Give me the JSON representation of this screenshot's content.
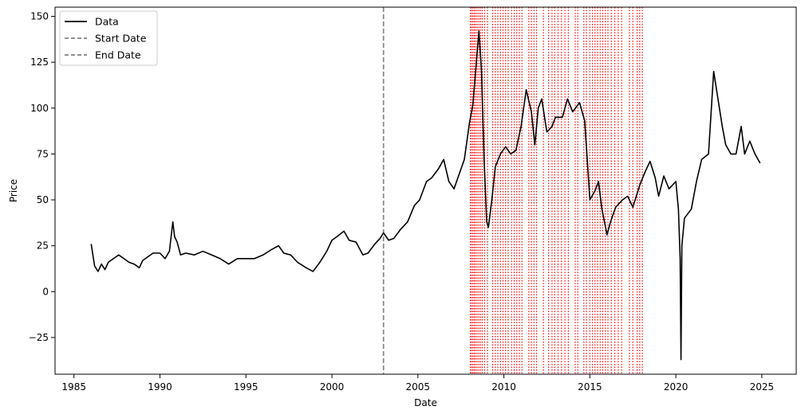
{
  "chart_data": {
    "type": "line",
    "xlabel": "Date",
    "ylabel": "Price",
    "xlim": [
      1983.9,
      2027.0
    ],
    "ylim": [
      -45,
      155
    ],
    "x_ticks": [
      1985,
      1990,
      1995,
      2000,
      2005,
      2010,
      2015,
      2020,
      2025
    ],
    "x_tick_labels": [
      "1985",
      "1990",
      "1995",
      "2000",
      "2005",
      "2010",
      "2015",
      "2020",
      "2025"
    ],
    "y_ticks": [
      -25,
      0,
      25,
      50,
      75,
      100,
      125,
      150
    ],
    "y_tick_labels": [
      "−25",
      "0",
      "25",
      "50",
      "75",
      "100",
      "125",
      "150"
    ],
    "grid": false,
    "legend_position": "upper-left",
    "legend": [
      {
        "label": "Data",
        "style": "solid",
        "color": "#000000"
      },
      {
        "label": "Start Date",
        "style": "dashed",
        "color": "#808080"
      },
      {
        "label": "End Date",
        "style": "dashed",
        "color": "#808080"
      }
    ],
    "colors": {
      "series": "#000000",
      "vline": "#808080",
      "events": "#ff0000"
    },
    "series": [
      {
        "name": "Data",
        "points": [
          [
            1986.0,
            26
          ],
          [
            1986.2,
            14
          ],
          [
            1986.4,
            11
          ],
          [
            1986.6,
            15
          ],
          [
            1986.8,
            12
          ],
          [
            1987.0,
            16
          ],
          [
            1987.3,
            18
          ],
          [
            1987.6,
            20
          ],
          [
            1987.9,
            18
          ],
          [
            1988.2,
            16
          ],
          [
            1988.5,
            15
          ],
          [
            1988.8,
            13
          ],
          [
            1989.0,
            17
          ],
          [
            1989.3,
            19
          ],
          [
            1989.6,
            21
          ],
          [
            1990.0,
            21
          ],
          [
            1990.3,
            18
          ],
          [
            1990.55,
            22
          ],
          [
            1990.75,
            38
          ],
          [
            1990.85,
            30
          ],
          [
            1991.0,
            27
          ],
          [
            1991.2,
            20
          ],
          [
            1991.5,
            21
          ],
          [
            1992.0,
            20
          ],
          [
            1992.5,
            22
          ],
          [
            1993.0,
            20
          ],
          [
            1993.5,
            18
          ],
          [
            1994.0,
            15
          ],
          [
            1994.5,
            18
          ],
          [
            1995.0,
            18
          ],
          [
            1995.5,
            18
          ],
          [
            1996.0,
            20
          ],
          [
            1996.5,
            23
          ],
          [
            1996.9,
            25
          ],
          [
            1997.2,
            21
          ],
          [
            1997.6,
            20
          ],
          [
            1998.0,
            16
          ],
          [
            1998.5,
            13
          ],
          [
            1998.9,
            11
          ],
          [
            1999.3,
            16
          ],
          [
            1999.7,
            22
          ],
          [
            2000.0,
            28
          ],
          [
            2000.3,
            30
          ],
          [
            2000.7,
            33
          ],
          [
            2001.0,
            28
          ],
          [
            2001.4,
            27
          ],
          [
            2001.8,
            20
          ],
          [
            2002.1,
            21
          ],
          [
            2002.5,
            26
          ],
          [
            2002.8,
            29
          ],
          [
            2003.0,
            32
          ],
          [
            2003.3,
            28
          ],
          [
            2003.6,
            29
          ],
          [
            2004.0,
            34
          ],
          [
            2004.4,
            38
          ],
          [
            2004.8,
            47
          ],
          [
            2005.1,
            50
          ],
          [
            2005.5,
            60
          ],
          [
            2005.8,
            62
          ],
          [
            2006.2,
            67
          ],
          [
            2006.5,
            72
          ],
          [
            2006.8,
            60
          ],
          [
            2007.1,
            56
          ],
          [
            2007.4,
            64
          ],
          [
            2007.7,
            72
          ],
          [
            2008.0,
            92
          ],
          [
            2008.2,
            102
          ],
          [
            2008.4,
            125
          ],
          [
            2008.55,
            142
          ],
          [
            2008.7,
            120
          ],
          [
            2008.85,
            72
          ],
          [
            2009.0,
            38
          ],
          [
            2009.1,
            35
          ],
          [
            2009.3,
            50
          ],
          [
            2009.5,
            68
          ],
          [
            2009.8,
            75
          ],
          [
            2010.1,
            79
          ],
          [
            2010.4,
            75
          ],
          [
            2010.7,
            77
          ],
          [
            2011.0,
            90
          ],
          [
            2011.3,
            110
          ],
          [
            2011.6,
            98
          ],
          [
            2011.8,
            80
          ],
          [
            2012.0,
            100
          ],
          [
            2012.2,
            105
          ],
          [
            2012.5,
            87
          ],
          [
            2012.8,
            90
          ],
          [
            2013.0,
            95
          ],
          [
            2013.4,
            95
          ],
          [
            2013.7,
            105
          ],
          [
            2014.0,
            98
          ],
          [
            2014.4,
            103
          ],
          [
            2014.7,
            93
          ],
          [
            2015.0,
            50
          ],
          [
            2015.3,
            55
          ],
          [
            2015.5,
            60
          ],
          [
            2015.7,
            45
          ],
          [
            2016.0,
            31
          ],
          [
            2016.2,
            38
          ],
          [
            2016.5,
            46
          ],
          [
            2016.9,
            50
          ],
          [
            2017.2,
            52
          ],
          [
            2017.5,
            46
          ],
          [
            2017.9,
            58
          ],
          [
            2018.2,
            65
          ],
          [
            2018.5,
            71
          ],
          [
            2018.8,
            62
          ],
          [
            2019.0,
            52
          ],
          [
            2019.3,
            63
          ],
          [
            2019.6,
            56
          ],
          [
            2020.0,
            60
          ],
          [
            2020.15,
            45
          ],
          [
            2020.25,
            18
          ],
          [
            2020.3,
            -37
          ],
          [
            2020.35,
            25
          ],
          [
            2020.5,
            40
          ],
          [
            2020.9,
            45
          ],
          [
            2021.2,
            60
          ],
          [
            2021.5,
            72
          ],
          [
            2021.9,
            75
          ],
          [
            2022.2,
            120
          ],
          [
            2022.4,
            108
          ],
          [
            2022.7,
            90
          ],
          [
            2022.9,
            80
          ],
          [
            2023.2,
            75
          ],
          [
            2023.5,
            75
          ],
          [
            2023.8,
            90
          ],
          [
            2024.0,
            75
          ],
          [
            2024.3,
            82
          ],
          [
            2024.6,
            75
          ],
          [
            2024.9,
            70
          ]
        ]
      }
    ],
    "vlines": [
      {
        "label": "Start Date",
        "x": 2003.0
      },
      {
        "label": "End Date",
        "x": 2003.0
      }
    ],
    "event_lines": [
      2008.05,
      2008.12,
      2008.2,
      2008.28,
      2008.36,
      2008.45,
      2008.55,
      2008.65,
      2008.75,
      2008.88,
      2009.05,
      2009.35,
      2009.5,
      2009.65,
      2009.8,
      2009.95,
      2010.1,
      2010.25,
      2010.45,
      2010.6,
      2010.75,
      2010.9,
      2011.05,
      2011.45,
      2011.6,
      2011.75,
      2011.9,
      2012.3,
      2012.6,
      2012.8,
      2012.95,
      2013.15,
      2013.35,
      2013.55,
      2013.75,
      2014.15,
      2014.3,
      2014.65,
      2014.8,
      2015.0,
      2015.15,
      2015.3,
      2015.45,
      2015.6,
      2015.75,
      2015.9,
      2016.05,
      2016.25,
      2016.45,
      2016.65,
      2016.85,
      2017.3,
      2017.5,
      2017.75,
      2017.9,
      2018.05
    ]
  }
}
